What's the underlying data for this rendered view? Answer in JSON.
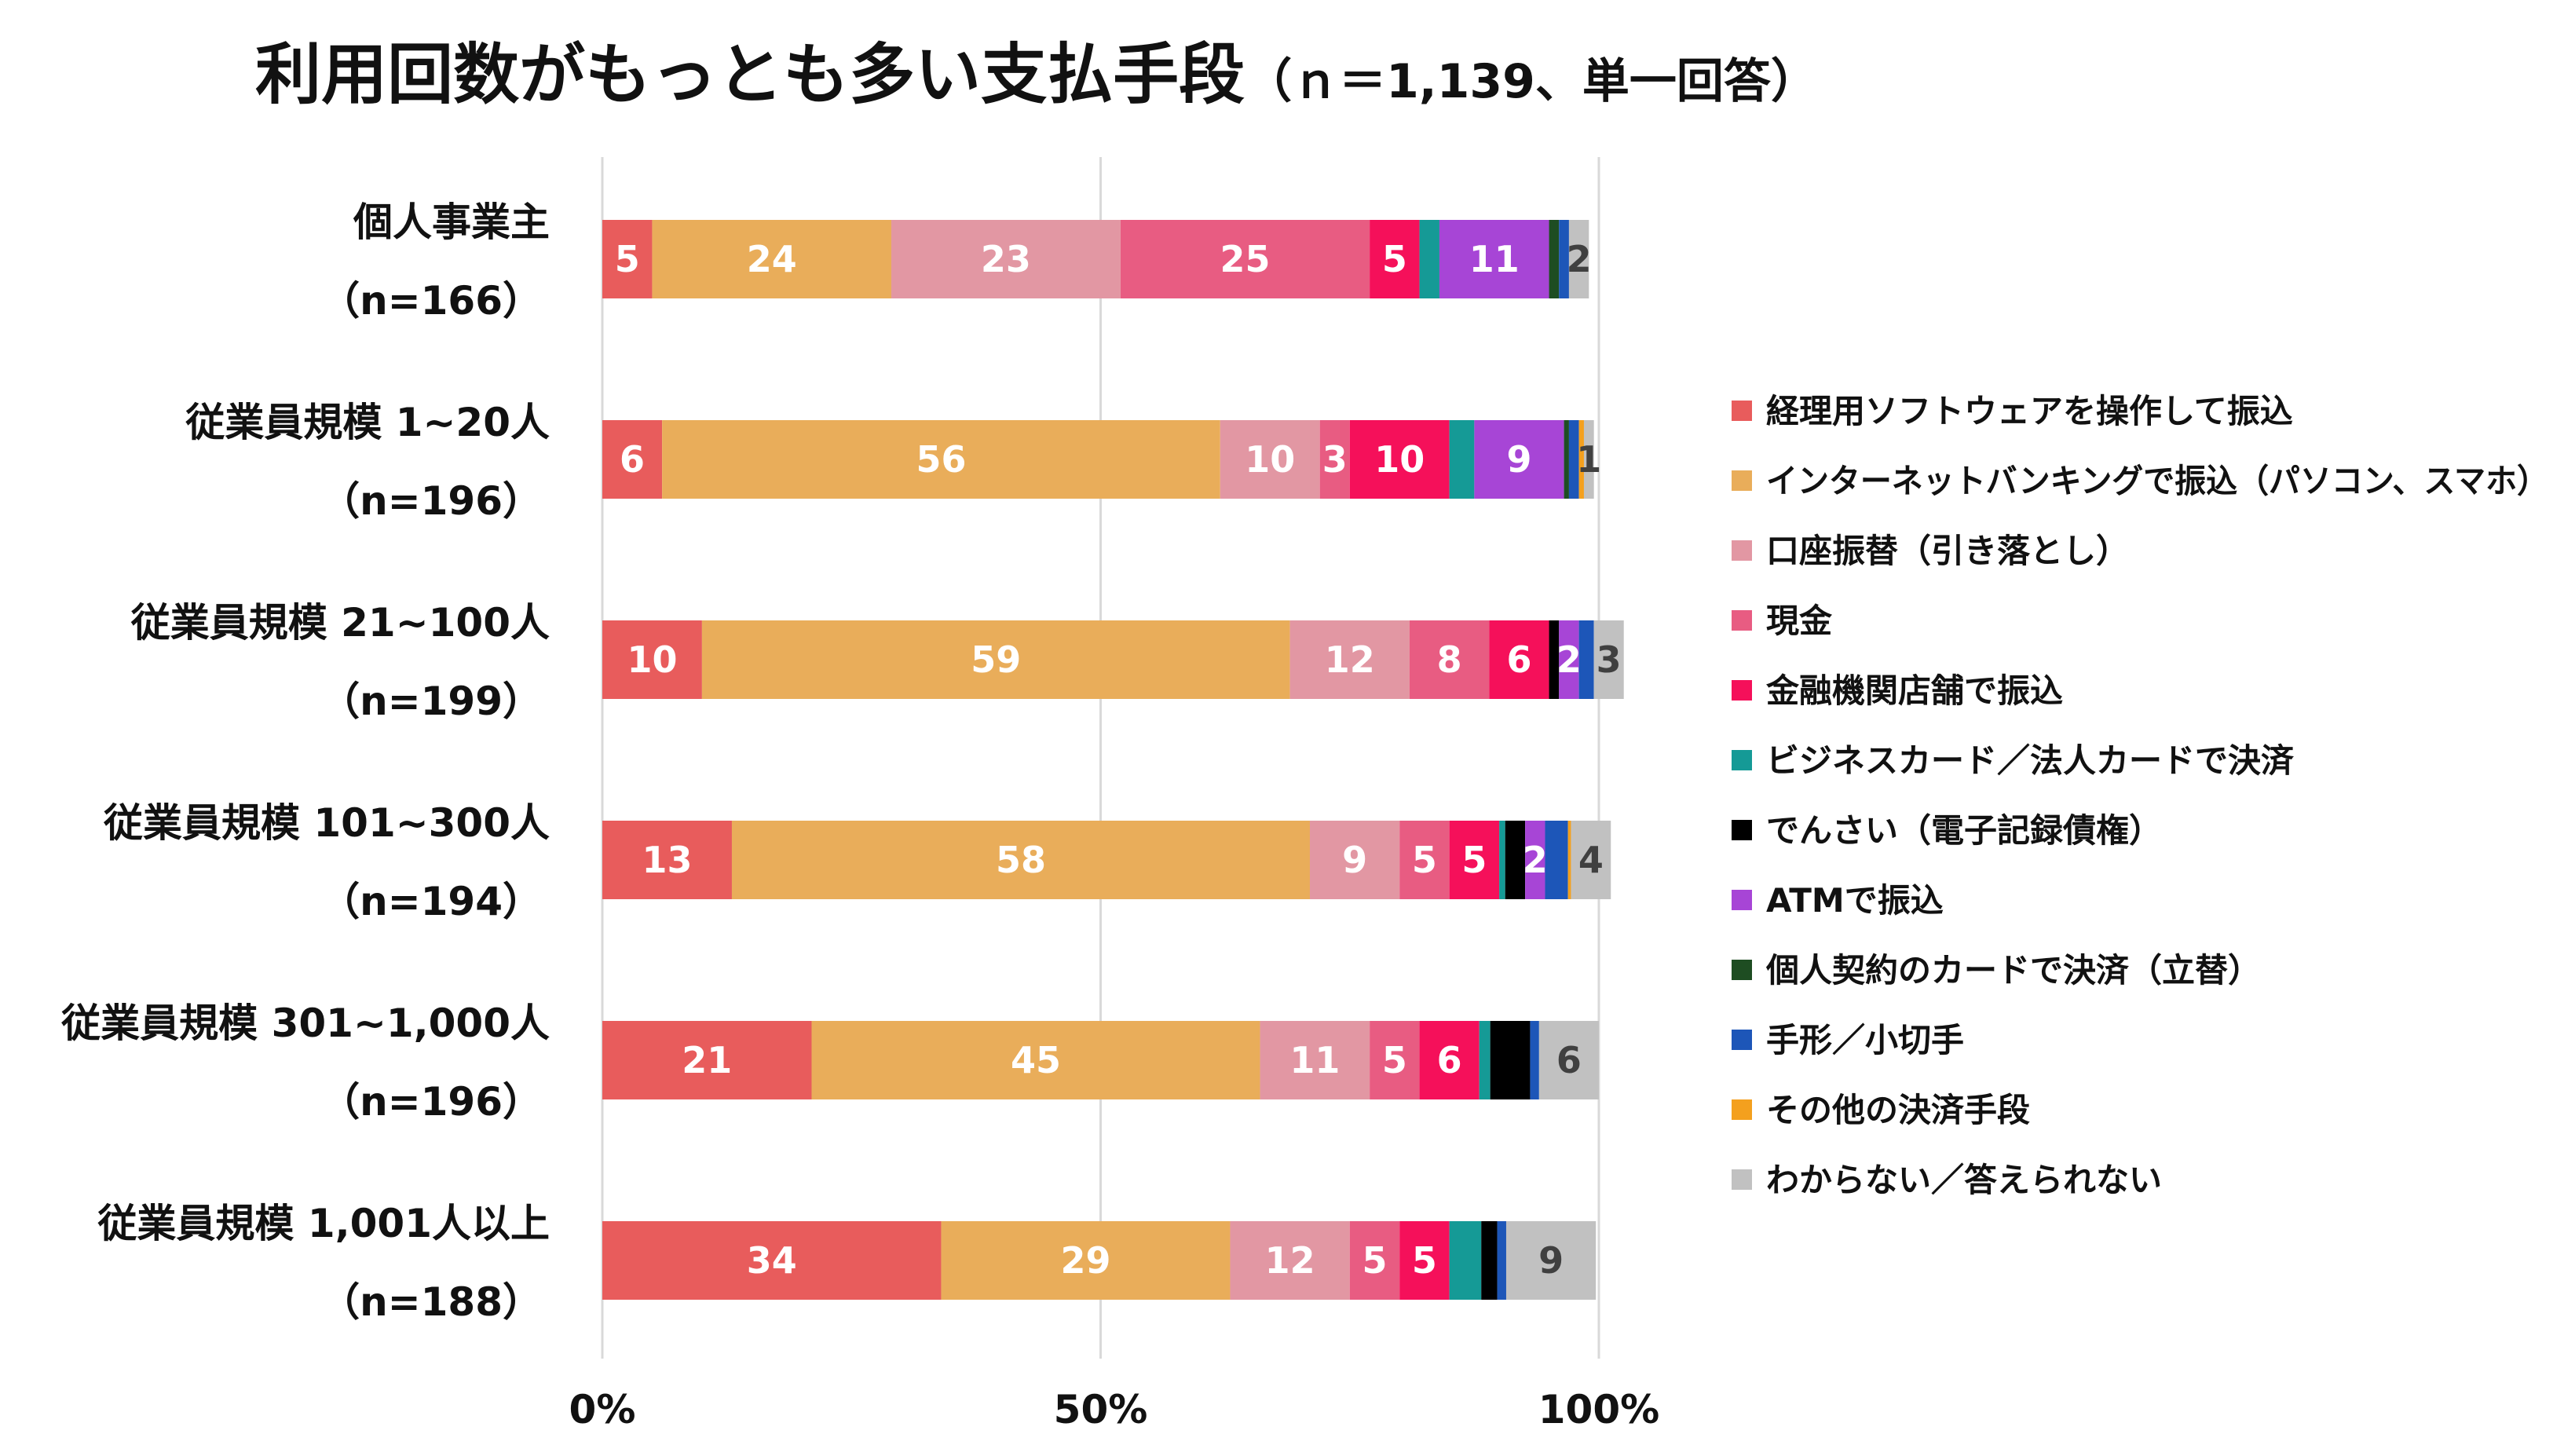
{
  "chart_data": {
    "type": "bar",
    "orientation": "horizontal",
    "stacked": true,
    "title": "利用回数がもっとも多い支払手段",
    "subtitle": "（ｎ＝1,139、単一回答）",
    "categories": [
      {
        "name": "個人事業主",
        "n": "（n=166）"
      },
      {
        "name": "従業員規模 1~20人",
        "n": "（n=196）"
      },
      {
        "name": "従業員規模 21~100人",
        "n": "（n=199）"
      },
      {
        "name": "従業員規模 101~300人",
        "n": "（n=194）"
      },
      {
        "name": "従業員規模 301~1,000人",
        "n": "（n=196）"
      },
      {
        "name": "従業員規模 1,001人以上",
        "n": "（n=188）"
      }
    ],
    "series": [
      {
        "name": "経理用ソフトウェアを操作して振込",
        "color": "#E85C5C",
        "values": [
          5,
          6,
          10,
          13,
          21,
          34
        ],
        "labels": [
          "5",
          "6",
          "10",
          "13",
          "21",
          "34"
        ]
      },
      {
        "name": "インターネットバンキングで振込（パソコン、スマホ）",
        "color": "#E9AD5A",
        "values": [
          24,
          56,
          59,
          58,
          45,
          29
        ],
        "labels": [
          "24",
          "56",
          "59",
          "58",
          "45",
          "29"
        ]
      },
      {
        "name": "口座振替（引き落とし）",
        "color": "#E297A3",
        "values": [
          23,
          10,
          12,
          9,
          11,
          12
        ],
        "labels": [
          "23",
          "10",
          "12",
          "9",
          "11",
          "12"
        ]
      },
      {
        "name": "現金",
        "color": "#E85C82",
        "values": [
          25,
          3,
          8,
          5,
          5,
          5
        ],
        "labels": [
          "25",
          "3",
          "8",
          "5",
          "5",
          "5"
        ]
      },
      {
        "name": "金融機関店舗で振込",
        "color": "#F5105A",
        "values": [
          5,
          10,
          6,
          5,
          6,
          5
        ],
        "labels": [
          "5",
          "10",
          "6",
          "5",
          "6",
          "5"
        ]
      },
      {
        "name": "ビジネスカード／法人カードで決済",
        "color": "#159A96",
        "values": [
          2,
          2.5,
          0,
          0.6,
          1.1,
          3.2
        ],
        "labels": [
          "",
          "",
          "",
          "",
          "",
          ""
        ]
      },
      {
        "name": "でんさい（電子記録債権）",
        "color": "#000000",
        "values": [
          0,
          0,
          1,
          2,
          4,
          1.6
        ],
        "labels": [
          "",
          "",
          "",
          "",
          "",
          ""
        ]
      },
      {
        "name": "ATMで振込",
        "color": "#A745D6",
        "values": [
          11,
          9,
          2,
          2,
          0,
          0
        ],
        "labels": [
          "11",
          "9",
          "2",
          "2",
          "",
          ""
        ]
      },
      {
        "name": "個人契約のカードで決済（立替）",
        "color": "#1E4D22",
        "values": [
          1,
          0.5,
          0,
          0,
          0,
          0
        ],
        "labels": [
          "",
          "",
          "",
          "",
          "",
          ""
        ]
      },
      {
        "name": "手形／小切手",
        "color": "#1D56B8",
        "values": [
          1,
          1,
          1.5,
          2.3,
          0.9,
          0.9
        ],
        "labels": [
          "",
          "",
          "",
          "",
          "",
          ""
        ]
      },
      {
        "name": "その他の決済手段",
        "color": "#F4A01E",
        "values": [
          0,
          0.5,
          0,
          0.3,
          0,
          0
        ],
        "labels": [
          "",
          "",
          "",
          "",
          "",
          ""
        ]
      },
      {
        "name": "わからない／答えられない",
        "color": "#C1C1C1",
        "values": [
          2,
          1,
          3,
          4,
          6,
          9
        ],
        "labels": [
          "2",
          "1",
          "3",
          "4",
          "6",
          "9"
        ]
      }
    ],
    "xlim": [
      0,
      100
    ],
    "x_ticks": [
      "0%",
      "50%",
      "100%"
    ],
    "gridlines": true,
    "legend_position": "right"
  }
}
